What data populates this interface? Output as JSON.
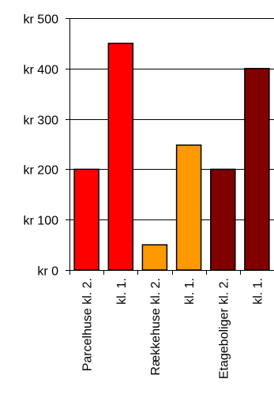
{
  "chart_data": {
    "type": "bar",
    "title": "",
    "xlabel": "",
    "ylabel": "",
    "ylim": [
      0,
      500
    ],
    "grid": true,
    "legend": "none",
    "y_ticks": [
      "kr 0",
      "kr 100",
      "kr 200",
      "kr 300",
      "kr 400",
      "kr 500"
    ],
    "y_tick_values": [
      0,
      100,
      200,
      300,
      400,
      500
    ],
    "categories": [
      "Parcelhuse kl. 2.",
      "kl. 1.",
      "Rækkehuse kl. 2.",
      "kl. 1.",
      "Etageboliger kl. 2.",
      "kl. 1."
    ],
    "values": [
      200,
      450,
      50,
      248,
      200,
      400
    ],
    "colors": [
      "#ff0000",
      "#ff0000",
      "#ff9900",
      "#ff9900",
      "#800000",
      "#800000"
    ]
  }
}
